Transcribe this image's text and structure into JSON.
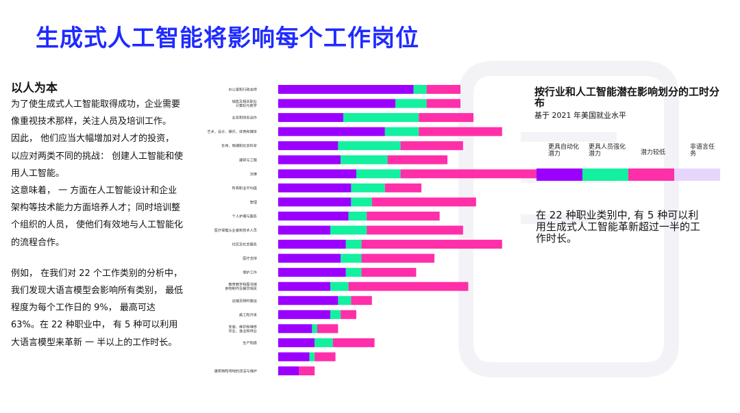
{
  "page": {
    "title": "生成式人工智能将影响每个工作岗位"
  },
  "left": {
    "heading": "以人为本",
    "paragraphs": [
      "为了使生成式人工智能取得成功，企业需要像重视技术那样，关注人员及培训工作。",
      "因此， 他们应当大幅增加对人才的投资， 以应对两类不同的挑战： 创建人工智能和使用人工智能。",
      "这意味着， 一 方面在人工智能设计和企业架构等技术能力方面培养人才；同时培训整个组织的人员， 使他们有效地与人工智能化的流程合作。",
      "例如， 在我们对 22 个工作类别的分析中， 我们发现大语言模型会影响所有类别， 最低程度为每个工作日的 9%， 最高可达 63%。在 22 种职业中， 有 5 种可以利用大语言模型来革新 一 半以上的工作时长。"
    ]
  },
  "right": {
    "heading": "按行业和人工智能潜在影响划分的工时分布",
    "subheading": "基于 2021 年美国就业水平",
    "legend": [
      {
        "label": "更具自动化潜力",
        "color": "#9b00ff"
      },
      {
        "label": "更具人员强化潜力",
        "color": "#13f0a0"
      },
      {
        "label": "潜力较低",
        "color": "#ff2fa9"
      },
      {
        "label": "非语言任务",
        "color": "#e6d6fb"
      }
    ],
    "note": "在 22 种职业类别中, 有 5 种可以利用生成式人工智能革新超过一半的工作时长。"
  },
  "chart_data": {
    "type": "bar",
    "orientation": "horizontal",
    "stacked": true,
    "title": "",
    "series_colors": [
      "#9b00ff",
      "#13f0a0",
      "#ff2fa9",
      "#e6d6fb"
    ],
    "categories": [
      "办公室和行政支持",
      "销售及相关职业 计算机与数学",
      "业务和财务运作",
      "艺术、设计、娱乐、体育和媒体",
      "生命、物理和社会科学",
      "建筑与工程",
      "法律",
      "所有职业平均值",
      "管理",
      "个人护理与服务",
      "医疗保健从业者和技术人员",
      "社区及社会服务",
      "医疗支持",
      "保护工作",
      "教育教学和图书馆 食物制作及餐饮相关",
      "运输及物料搬运",
      "施工和开采",
      "安装、维护和维修 农业、渔业和林业",
      "生产制造",
      "",
      "建筑物和场地的清洁与维护"
    ],
    "series": [
      {
        "values": [
          52,
          45,
          25,
          41,
          23,
          24,
          30,
          28,
          28,
          27,
          20,
          26,
          24,
          26,
          20,
          23,
          20,
          13,
          14,
          12,
          8
        ]
      },
      {
        "values": [
          5,
          12,
          29,
          13,
          24,
          18,
          17,
          13,
          8,
          7,
          14,
          6,
          8,
          6,
          7,
          5,
          4,
          2,
          7,
          2,
          0
        ]
      },
      {
        "values": [
          13,
          13,
          21,
          32,
          24,
          23,
          53,
          14,
          40,
          28,
          37,
          54,
          28,
          21,
          46,
          8,
          6,
          8,
          16,
          8,
          6
        ]
      },
      {
        "values": [
          0,
          0,
          0,
          0,
          0,
          0,
          0,
          0,
          0,
          0,
          0,
          0,
          0,
          0,
          0,
          0,
          0,
          0,
          0,
          0,
          0
        ]
      }
    ],
    "xlim": [
      0,
      100
    ],
    "grid": false
  }
}
